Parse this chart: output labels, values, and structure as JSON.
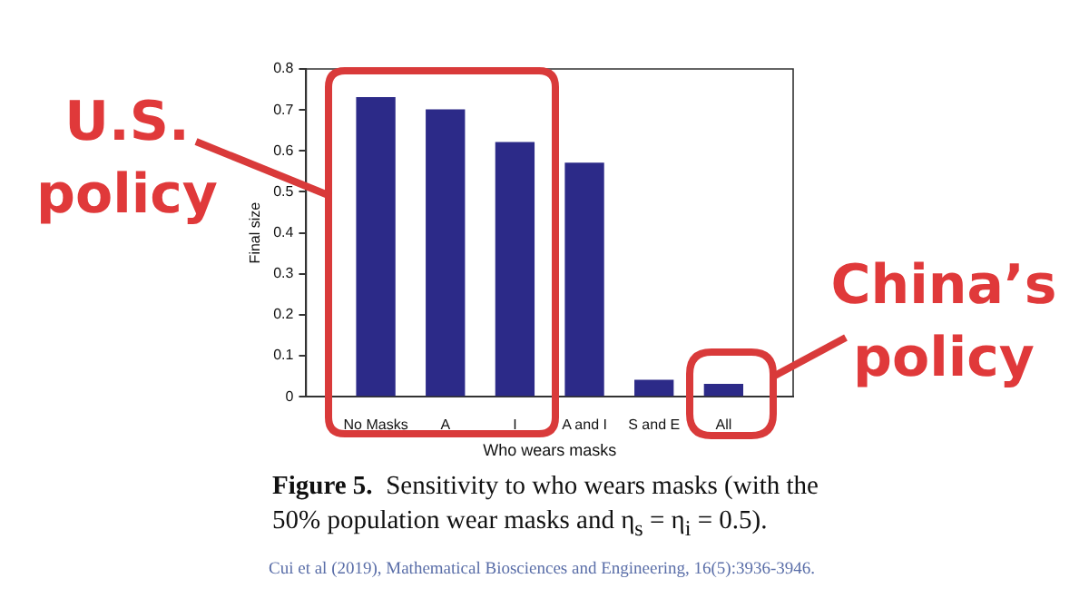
{
  "chart_data": {
    "type": "bar",
    "xlabel": "Who wears masks",
    "ylabel": "Final size",
    "categories": [
      "No Masks",
      "A",
      "I",
      "A and I",
      "S and E",
      "All"
    ],
    "values": [
      0.73,
      0.7,
      0.62,
      0.57,
      0.04,
      0.03
    ],
    "color": "#2c2a88",
    "ylim": [
      0,
      0.8
    ],
    "yticks": [
      0,
      0.1,
      0.2,
      0.3,
      0.4,
      0.5,
      0.6,
      0.7,
      0.8
    ],
    "grid": false,
    "legend": false,
    "annotations": [
      "U.S. policy",
      "China’s policy",
      "Figure 5.",
      "Sensitivity to who wears masks (with the 50% population wear masks and η$_{s}$ = η$_{i}$ = 0.5).",
      "Cui et al (2019), Mathematical Biosciences and Engineering, 16(5):3936-3946."
    ]
  }
}
